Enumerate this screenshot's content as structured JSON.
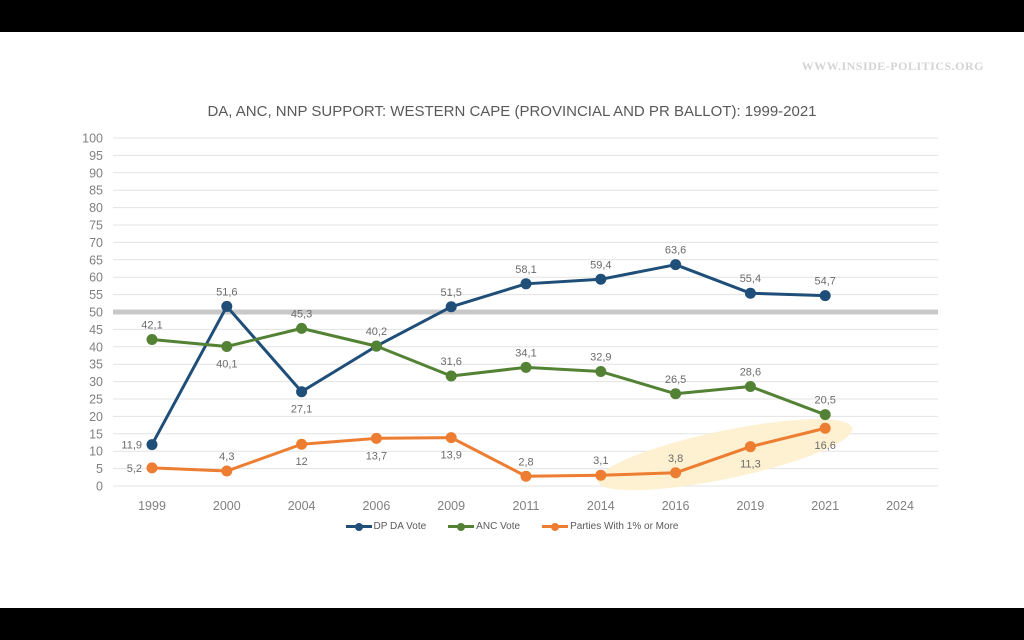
{
  "watermark": "WWW.INSIDE-POLITICS.ORG",
  "chart_data": {
    "type": "line",
    "title": "DA, ANC, NNP SUPPORT: WESTERN CAPE (PROVINCIAL AND PR BALLOT): 1999-2021",
    "xlabel": "",
    "ylabel": "",
    "ylim": [
      0,
      100
    ],
    "yticks": [
      0,
      5,
      10,
      15,
      20,
      25,
      30,
      35,
      40,
      45,
      50,
      55,
      60,
      65,
      70,
      75,
      80,
      85,
      90,
      95,
      100
    ],
    "reference_line": 50,
    "grid": true,
    "legend_position": "bottom",
    "categories": [
      "1999",
      "2000",
      "2004",
      "2006",
      "2009",
      "2011",
      "2014",
      "2016",
      "2019",
      "2021",
      "2024"
    ],
    "series": [
      {
        "name": "DP DA Vote",
        "color": "#1f4e79",
        "values": [
          11.9,
          51.6,
          27.1,
          40.2,
          51.5,
          58.1,
          59.4,
          63.6,
          55.4,
          54.7,
          null
        ],
        "labels": [
          "11,9",
          "51,6",
          "27,1",
          "",
          "51,5",
          "58,1",
          "59,4",
          "63,6",
          "55,4",
          "54,7",
          ""
        ]
      },
      {
        "name": "ANC Vote",
        "color": "#548235",
        "values": [
          42.1,
          40.1,
          45.3,
          40.2,
          31.6,
          34.1,
          32.9,
          26.5,
          28.6,
          20.5,
          null
        ],
        "labels": [
          "42,1",
          "40,1",
          "45,3",
          "40,2",
          "31,6",
          "34,1",
          "32,9",
          "26,5",
          "28,6",
          "20,5",
          ""
        ]
      },
      {
        "name": "Parties With 1% or More",
        "color": "#ed7d31",
        "values": [
          5.2,
          4.3,
          12,
          13.7,
          13.9,
          2.8,
          3.1,
          3.8,
          11.3,
          16.6,
          null
        ],
        "labels": [
          "5,2",
          "4,3",
          "12",
          "13,7",
          "13,9",
          "2,8",
          "3,1",
          "3,8",
          "11,3",
          "16,6",
          ""
        ]
      }
    ],
    "highlight": {
      "description": "shaded ellipse over Parties With 1% or More, 2014-2021",
      "color": "#fdf0cc"
    }
  }
}
